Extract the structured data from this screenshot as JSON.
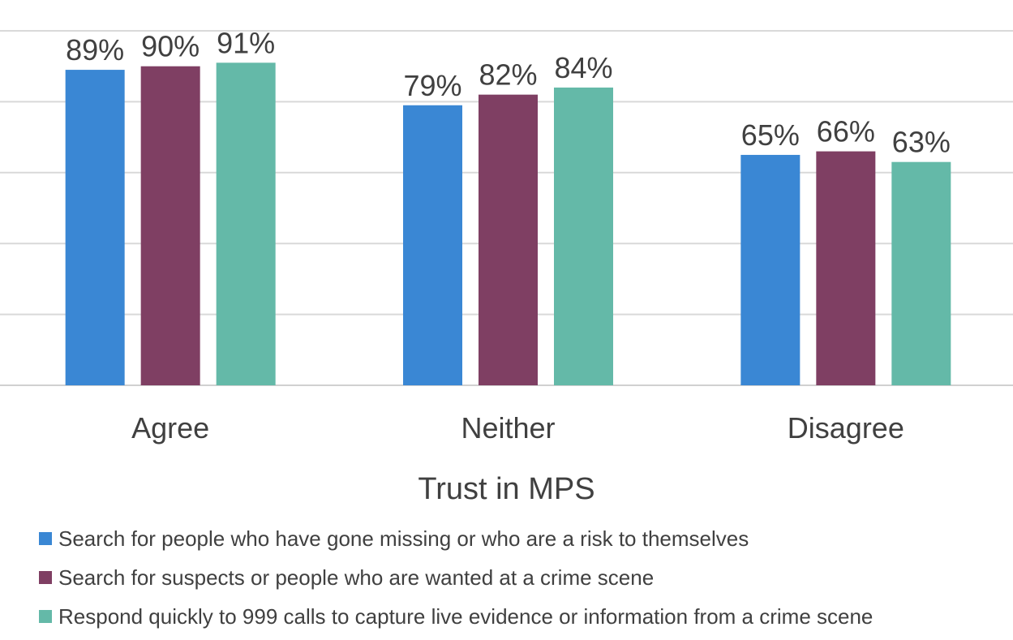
{
  "chart_data": {
    "type": "bar",
    "categories": [
      "Agree",
      "Neither",
      "Disagree"
    ],
    "series": [
      {
        "name": "Search for people who have gone missing or who are a risk to themselves",
        "values": [
          89,
          79,
          65
        ],
        "color": "#3A87D4"
      },
      {
        "name": "Search for suspects or people who are wanted at a crime scene",
        "values": [
          90,
          82,
          66
        ],
        "color": "#7F3F63"
      },
      {
        "name": "Respond quickly to 999 calls to capture live evidence or information from a crime scene",
        "values": [
          91,
          84,
          63
        ],
        "color": "#64B9A8"
      }
    ],
    "value_suffix": "%",
    "xlabel": "Trust in MPS",
    "ylabel": "",
    "ylim": [
      0,
      100
    ],
    "yticks": [
      0,
      20,
      40,
      60,
      80,
      100
    ],
    "y_tick_labels_shown": false,
    "grid": true,
    "legend_position": "bottom"
  }
}
